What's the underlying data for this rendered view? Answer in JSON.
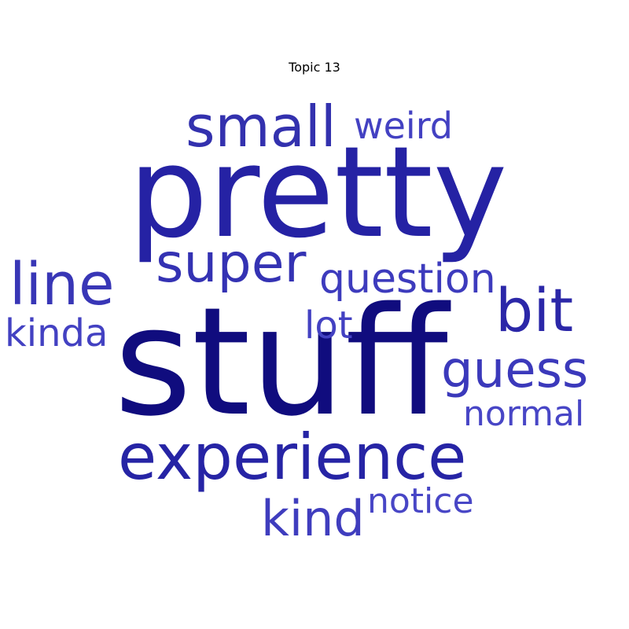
{
  "title": "Topic 13",
  "words": {
    "stuff": {
      "text": "stuff",
      "color": "#100c7e"
    },
    "pretty": {
      "text": "pretty",
      "color": "#2522a4"
    },
    "experience": {
      "text": "experience",
      "color": "#2624a5"
    },
    "small": {
      "text": "small",
      "color": "#3331ae"
    },
    "super": {
      "text": "super",
      "color": "#3432b3"
    },
    "line": {
      "text": "line",
      "color": "#3836b6"
    },
    "bit": {
      "text": "bit",
      "color": "#2b27a8"
    },
    "guess": {
      "text": "guess",
      "color": "#3b39bb"
    },
    "question": {
      "text": "question",
      "color": "#3d3bbd"
    },
    "weird": {
      "text": "weird",
      "color": "#4341c2"
    },
    "kind": {
      "text": "kind",
      "color": "#3f3dbe"
    },
    "kinda": {
      "text": "kinda",
      "color": "#4341c2"
    },
    "lot": {
      "text": "lot",
      "color": "#4341c2"
    },
    "normal": {
      "text": "normal",
      "color": "#4846c6"
    },
    "notice": {
      "text": "notice",
      "color": "#4846c6"
    }
  }
}
